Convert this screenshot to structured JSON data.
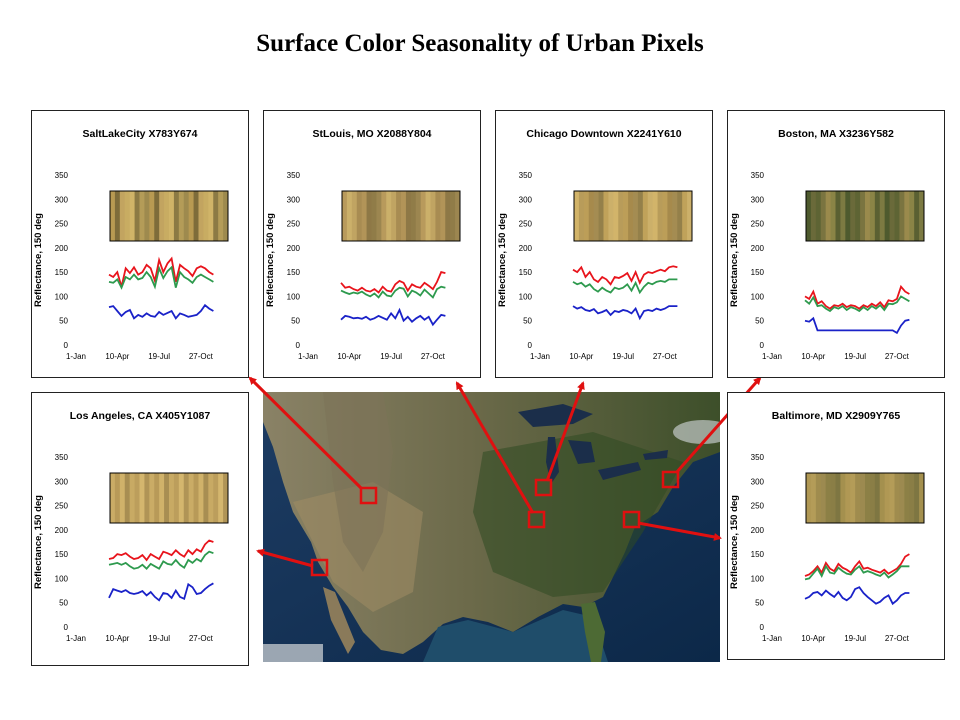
{
  "slide_title": "Surface Color Seasonality of Urban Pixels",
  "chart_data": [
    {
      "type": "line",
      "title": "SaltLakeCity X783Y674",
      "ylabel": "Reflectance, 150 deg",
      "xlabel": "",
      "ylim": [
        0,
        350
      ],
      "yticks": [
        "0",
        "50",
        "100",
        "150",
        "200",
        "250",
        "300",
        "350"
      ],
      "xlim": [
        1,
        365
      ],
      "xticks": [
        {
          "label": "1-Jan",
          "value": 1
        },
        {
          "label": "10-Apr",
          "value": 100
        },
        {
          "label": "19-Jul",
          "value": 200
        },
        {
          "label": "27-Oct",
          "value": 300
        }
      ],
      "x": [
        80,
        90,
        100,
        110,
        120,
        130,
        140,
        150,
        160,
        170,
        180,
        190,
        200,
        210,
        220,
        230,
        240,
        250,
        260,
        270,
        280,
        290,
        300,
        310,
        320,
        330
      ],
      "series": [
        {
          "color": "#e8141c",
          "values": [
            145,
            140,
            150,
            120,
            158,
            148,
            160,
            145,
            150,
            165,
            158,
            132,
            175,
            150,
            168,
            178,
            130,
            165,
            158,
            152,
            142,
            158,
            162,
            158,
            150,
            145
          ]
        },
        {
          "color": "#2e9a4e",
          "values": [
            130,
            128,
            135,
            118,
            140,
            135,
            145,
            135,
            138,
            150,
            140,
            120,
            158,
            138,
            152,
            160,
            118,
            150,
            140,
            135,
            128,
            140,
            145,
            140,
            135,
            130
          ]
        },
        {
          "color": "#1a22c8",
          "values": [
            78,
            80,
            70,
            60,
            68,
            72,
            55,
            62,
            58,
            65,
            60,
            58,
            68,
            62,
            66,
            70,
            55,
            65,
            62,
            58,
            60,
            62,
            70,
            82,
            75,
            70
          ]
        }
      ]
    },
    {
      "type": "line",
      "title": "StLouis, MO X2088Y804",
      "ylabel": "Reflectance, 150 deg",
      "xlabel": "",
      "ylim": [
        0,
        350
      ],
      "yticks": [
        "0",
        "50",
        "100",
        "150",
        "200",
        "250",
        "300",
        "350"
      ],
      "xlim": [
        1,
        365
      ],
      "xticks": [
        {
          "label": "1-Jan",
          "value": 1
        },
        {
          "label": "10-Apr",
          "value": 100
        },
        {
          "label": "19-Jul",
          "value": 200
        },
        {
          "label": "27-Oct",
          "value": 300
        }
      ],
      "x": [
        80,
        90,
        100,
        110,
        120,
        130,
        140,
        150,
        160,
        170,
        180,
        190,
        200,
        210,
        220,
        230,
        240,
        250,
        260,
        270,
        280,
        290,
        300,
        310,
        320,
        330
      ],
      "series": [
        {
          "color": "#e8141c",
          "values": [
            128,
            118,
            120,
            115,
            112,
            118,
            112,
            110,
            115,
            108,
            120,
            112,
            110,
            125,
            132,
            128,
            112,
            125,
            120,
            118,
            128,
            122,
            115,
            130,
            150,
            148
          ]
        },
        {
          "color": "#2e9a4e",
          "values": [
            112,
            108,
            105,
            108,
            106,
            110,
            104,
            100,
            106,
            98,
            110,
            102,
            100,
            112,
            118,
            116,
            100,
            112,
            108,
            102,
            114,
            106,
            98,
            115,
            120,
            118
          ]
        },
        {
          "color": "#1a22c8",
          "values": [
            52,
            60,
            58,
            55,
            56,
            54,
            58,
            52,
            55,
            60,
            56,
            52,
            65,
            55,
            72,
            50,
            58,
            48,
            55,
            60,
            52,
            58,
            42,
            52,
            62,
            60
          ]
        }
      ]
    },
    {
      "type": "line",
      "title": "Chicago Downtown X2241Y610",
      "ylabel": "Reflectance, 150 deg",
      "xlabel": "",
      "ylim": [
        0,
        350
      ],
      "yticks": [
        "0",
        "50",
        "100",
        "150",
        "200",
        "250",
        "300",
        "350"
      ],
      "xlim": [
        1,
        365
      ],
      "xticks": [
        {
          "label": "1-Jan",
          "value": 1
        },
        {
          "label": "10-Apr",
          "value": 100
        },
        {
          "label": "19-Jul",
          "value": 200
        },
        {
          "label": "27-Oct",
          "value": 300
        }
      ],
      "x": [
        80,
        90,
        100,
        110,
        120,
        130,
        140,
        150,
        160,
        170,
        180,
        190,
        200,
        210,
        220,
        230,
        240,
        250,
        260,
        270,
        280,
        290,
        300,
        310,
        320,
        330
      ],
      "series": [
        {
          "color": "#e8141c",
          "values": [
            155,
            150,
            160,
            140,
            150,
            135,
            130,
            140,
            135,
            125,
            140,
            138,
            142,
            148,
            132,
            150,
            128,
            145,
            150,
            148,
            152,
            155,
            152,
            160,
            162,
            160
          ]
        },
        {
          "color": "#2e9a4e",
          "values": [
            130,
            125,
            128,
            120,
            125,
            115,
            110,
            118,
            112,
            108,
            118,
            115,
            118,
            125,
            112,
            128,
            108,
            120,
            128,
            125,
            130,
            132,
            130,
            135,
            135,
            135
          ]
        },
        {
          "color": "#1a22c8",
          "values": [
            80,
            75,
            78,
            72,
            70,
            74,
            65,
            68,
            72,
            62,
            70,
            68,
            72,
            70,
            65,
            75,
            55,
            70,
            72,
            70,
            75,
            72,
            75,
            80,
            80,
            80
          ]
        }
      ]
    },
    {
      "type": "line",
      "title": "Boston, MA X3236Y582",
      "ylabel": "Reflectance, 150 deg",
      "xlabel": "",
      "ylim": [
        0,
        350
      ],
      "yticks": [
        "0",
        "50",
        "100",
        "150",
        "200",
        "250",
        "300",
        "350"
      ],
      "xlim": [
        1,
        365
      ],
      "xticks": [
        {
          "label": "1-Jan",
          "value": 1
        },
        {
          "label": "10-Apr",
          "value": 100
        },
        {
          "label": "19-Jul",
          "value": 200
        },
        {
          "label": "27-Oct",
          "value": 300
        }
      ],
      "x": [
        80,
        90,
        100,
        110,
        120,
        130,
        140,
        150,
        160,
        170,
        180,
        190,
        200,
        210,
        220,
        230,
        240,
        250,
        260,
        270,
        280,
        290,
        300,
        310,
        320,
        330
      ],
      "series": [
        {
          "color": "#e8141c",
          "values": [
            100,
            95,
            110,
            85,
            90,
            80,
            75,
            82,
            80,
            85,
            78,
            82,
            80,
            75,
            82,
            78,
            85,
            80,
            88,
            78,
            92,
            90,
            95,
            120,
            110,
            105
          ]
        },
        {
          "color": "#2e9a4e",
          "values": [
            92,
            85,
            98,
            80,
            82,
            75,
            70,
            78,
            75,
            80,
            72,
            78,
            75,
            70,
            78,
            72,
            80,
            75,
            82,
            72,
            85,
            84,
            88,
            100,
            95,
            90
          ]
        },
        {
          "color": "#1a22c8",
          "values": [
            50,
            48,
            55,
            30,
            30,
            30,
            30,
            30,
            30,
            30,
            30,
            30,
            30,
            30,
            30,
            30,
            30,
            30,
            30,
            30,
            30,
            30,
            25,
            40,
            50,
            52
          ]
        }
      ]
    },
    {
      "type": "line",
      "title": "Los Angeles, CA X405Y1087",
      "ylabel": "Reflectance, 150 deg",
      "xlabel": "",
      "ylim": [
        0,
        350
      ],
      "yticks": [
        "0",
        "50",
        "100",
        "150",
        "200",
        "250",
        "300",
        "350"
      ],
      "xlim": [
        1,
        365
      ],
      "xticks": [
        {
          "label": "1-Jan",
          "value": 1
        },
        {
          "label": "10-Apr",
          "value": 100
        },
        {
          "label": "19-Jul",
          "value": 200
        },
        {
          "label": "27-Oct",
          "value": 300
        }
      ],
      "x": [
        80,
        90,
        100,
        110,
        120,
        130,
        140,
        150,
        160,
        170,
        180,
        190,
        200,
        210,
        220,
        230,
        240,
        250,
        260,
        270,
        280,
        290,
        300,
        310,
        320,
        330
      ],
      "series": [
        {
          "color": "#e8141c",
          "values": [
            140,
            142,
            150,
            148,
            152,
            145,
            140,
            142,
            148,
            138,
            150,
            145,
            140,
            155,
            152,
            148,
            158,
            150,
            145,
            158,
            150,
            160,
            155,
            170,
            178,
            175
          ]
        },
        {
          "color": "#2e9a4e",
          "values": [
            128,
            130,
            132,
            128,
            132,
            125,
            120,
            122,
            128,
            120,
            130,
            125,
            120,
            135,
            130,
            128,
            138,
            128,
            122,
            138,
            132,
            140,
            135,
            148,
            155,
            152
          ]
        },
        {
          "color": "#1a22c8",
          "values": [
            60,
            78,
            75,
            72,
            76,
            70,
            68,
            70,
            74,
            65,
            72,
            62,
            55,
            70,
            68,
            60,
            75,
            62,
            58,
            88,
            82,
            68,
            70,
            78,
            85,
            90
          ]
        }
      ]
    },
    {
      "type": "line",
      "title": "Baltimore, MD X2909Y765",
      "ylabel": "Reflectance, 150 deg",
      "xlabel": "",
      "ylim": [
        0,
        350
      ],
      "yticks": [
        "0",
        "50",
        "100",
        "150",
        "200",
        "250",
        "300",
        "350"
      ],
      "xlim": [
        1,
        365
      ],
      "xticks": [
        {
          "label": "1-Jan",
          "value": 1
        },
        {
          "label": "10-Apr",
          "value": 100
        },
        {
          "label": "19-Jul",
          "value": 200
        },
        {
          "label": "27-Oct",
          "value": 300
        }
      ],
      "x": [
        80,
        90,
        100,
        110,
        120,
        130,
        140,
        150,
        160,
        170,
        180,
        190,
        200,
        210,
        220,
        230,
        240,
        250,
        260,
        270,
        280,
        290,
        300,
        310,
        320,
        330
      ],
      "series": [
        {
          "color": "#e8141c",
          "values": [
            105,
            108,
            115,
            125,
            112,
            132,
            120,
            115,
            130,
            122,
            118,
            112,
            125,
            135,
            120,
            122,
            118,
            115,
            112,
            118,
            110,
            115,
            120,
            130,
            145,
            150
          ]
        },
        {
          "color": "#2e9a4e",
          "values": [
            98,
            100,
            110,
            120,
            105,
            125,
            112,
            110,
            122,
            115,
            110,
            108,
            118,
            125,
            112,
            115,
            112,
            108,
            105,
            112,
            102,
            108,
            115,
            125,
            125,
            125
          ]
        },
        {
          "color": "#1a22c8",
          "values": [
            58,
            62,
            70,
            72,
            65,
            75,
            68,
            62,
            72,
            60,
            55,
            62,
            78,
            82,
            70,
            62,
            55,
            48,
            52,
            60,
            65,
            48,
            55,
            65,
            70,
            70
          ]
        }
      ]
    }
  ]
}
